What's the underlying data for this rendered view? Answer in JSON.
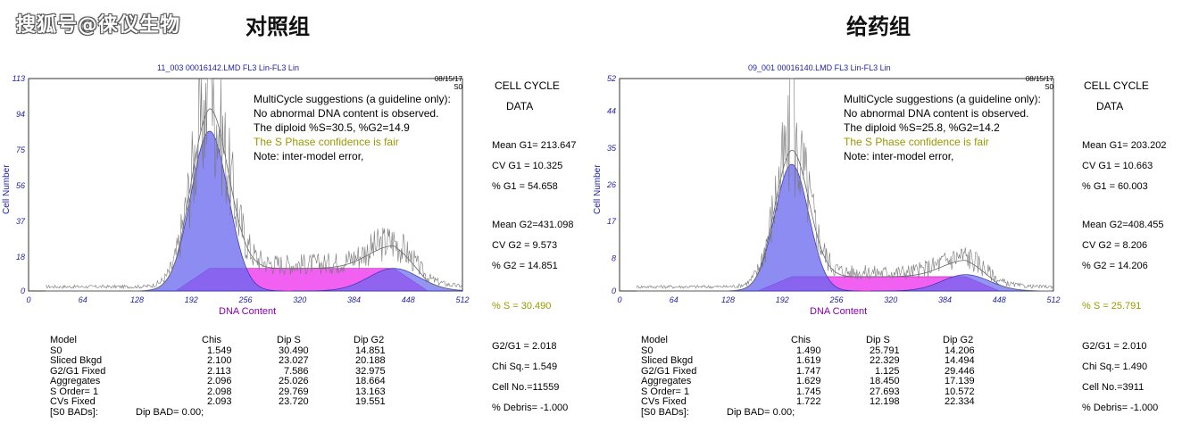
{
  "watermark": "搜狐号@徕仪生物",
  "panels": [
    {
      "group_title": "对照组",
      "file_title": "11_003 00016142.LMD FL3 Lin-FL3 Lin",
      "date": "08/15/17",
      "date_sub": "S0",
      "note": {
        "line1": "MultiCycle suggestions (a guideline only):",
        "line2": "No abnormal DNA content is observed.",
        "line3": "The diploid %S=30.5, %G2=14.9",
        "line4": "The S Phase confidence is fair",
        "line5": "Note: inter-model error,"
      },
      "side": {
        "cell": "CELL  CYCLE",
        "data": "DATA",
        "mean_g1": "Mean G1= 213.647",
        "cv_g1": "CV G1 = 10.325",
        "pct_g1": "% G1 = 54.658",
        "mean_g2": "Mean G2=431.098",
        "cv_g2": "CV G2 =  9.573",
        "pct_g2": "% G2 = 14.851",
        "pct_s": "% S  = 30.490",
        "g2g1": "G2/G1 = 2.018",
        "chisq": "Chi Sq.=  1.549",
        "cellno": "Cell No.=11559",
        "debris": "% Debris= -1.000"
      },
      "table": {
        "headers": [
          "Model",
          "Chis",
          "Dip S",
          "Dip G2"
        ],
        "rows": [
          [
            "S0",
            "1.549",
            "30.490",
            "14.851"
          ],
          [
            "Sliced Bkgd",
            "2.100",
            "23.027",
            "20.188"
          ],
          [
            " G2/G1 Fixed",
            "2.113",
            "7.586",
            "32.975"
          ],
          [
            " Aggregates",
            "2.096",
            "25.026",
            "18.664"
          ],
          [
            " S Order= 1",
            "2.098",
            "29.769",
            "13.163"
          ],
          [
            " CVs Fixed",
            "2.093",
            "23.720",
            "19.551"
          ]
        ],
        "footer_left": "[S0 BADs]:",
        "footer_right": "Dip BAD= 0.00;"
      },
      "chart_data": {
        "type": "area",
        "xlabel": "DNA Content",
        "ylabel": "Cell Number",
        "xlim": [
          0,
          512
        ],
        "ylim": [
          0,
          113
        ],
        "x_ticks": [
          0,
          64,
          128,
          192,
          256,
          320,
          384,
          448,
          512
        ],
        "y_ticks": [
          0,
          18,
          37,
          56,
          75,
          94,
          113
        ],
        "series": [
          {
            "component": "G1",
            "color": "#6666ee",
            "mean": 213.647,
            "peak": 85,
            "sd": 22
          },
          {
            "component": "S",
            "color": "#ee44ee",
            "level": 12
          },
          {
            "component": "G2",
            "color": "#6666ee",
            "mean": 431.098,
            "peak": 12,
            "sd": 30
          },
          {
            "component": "histogram",
            "color": "#777777",
            "peak": 113
          }
        ]
      }
    },
    {
      "group_title": "给药组",
      "file_title": "09_001 00016140.LMD FL3 Lin-FL3 Lin",
      "date": "08/15/17",
      "date_sub": "S0",
      "note": {
        "line1": "MultiCycle suggestions (a guideline only):",
        "line2": "No abnormal DNA content is observed.",
        "line3": "The diploid %S=25.8, %G2=14.2",
        "line4": "The S Phase confidence is fair",
        "line5": "Note: inter-model error,"
      },
      "side": {
        "cell": "CELL  CYCLE",
        "data": "DATA",
        "mean_g1": "Mean G1= 203.202",
        "cv_g1": "CV G1 = 10.663",
        "pct_g1": "% G1 = 60.003",
        "mean_g2": "Mean G2=408.455",
        "cv_g2": "CV G2 =  8.206",
        "pct_g2": "% G2 = 14.206",
        "pct_s": "% S  = 25.791",
        "g2g1": "G2/G1 =  2.010",
        "chisq": "Chi Sq.=  1.490",
        "cellno": "Cell No.=3911",
        "debris": "% Debris= -1.000"
      },
      "table": {
        "headers": [
          "Model",
          "Chis",
          "Dip S",
          "Dip G2"
        ],
        "rows": [
          [
            "S0",
            "1.490",
            "25.791",
            "14.206"
          ],
          [
            "Sliced Bkgd",
            "1.619",
            "22.329",
            "14.494"
          ],
          [
            " G2/G1 Fixed",
            "1.747",
            "1.125",
            "29.446"
          ],
          [
            " Aggregates",
            "1.629",
            "18.450",
            "17.139"
          ],
          [
            " S Order= 1",
            "1.745",
            "27.693",
            "10.572"
          ],
          [
            " CVs Fixed",
            "1.722",
            "12.198",
            "22.334"
          ]
        ],
        "footer_left": "[S0 BADs]:",
        "footer_right": "Dip BAD= 0.00;"
      },
      "chart_data": {
        "type": "area",
        "xlabel": "DNA Content",
        "ylabel": "Cell Number",
        "xlim": [
          0,
          512
        ],
        "ylim": [
          0,
          52
        ],
        "x_ticks": [
          0,
          64,
          128,
          192,
          256,
          320,
          384,
          448,
          512
        ],
        "y_ticks": [
          0,
          8,
          17,
          26,
          35,
          44,
          52
        ],
        "series": [
          {
            "component": "G1",
            "color": "#6666ee",
            "mean": 203.202,
            "peak": 31,
            "sd": 20
          },
          {
            "component": "S",
            "color": "#ee44ee",
            "level": 3.5
          },
          {
            "component": "G2",
            "color": "#6666ee",
            "mean": 408.455,
            "peak": 4,
            "sd": 28
          },
          {
            "component": "histogram",
            "color": "#777777",
            "peak": 52
          }
        ]
      }
    }
  ]
}
